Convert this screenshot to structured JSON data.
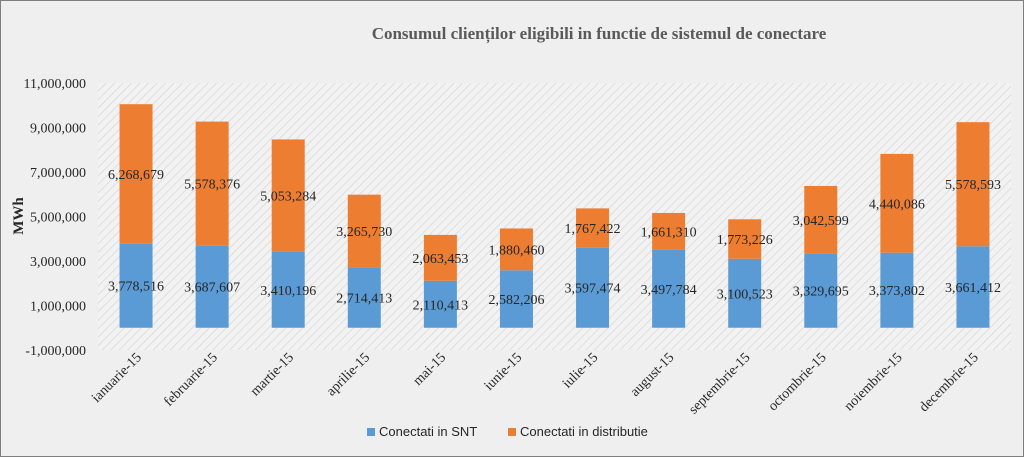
{
  "chart_data": {
    "type": "bar",
    "stacked": true,
    "title": "Consumul clienților eligibili in functie de sistemul de conectare",
    "xlabel": "",
    "ylabel": "MWh",
    "ylim": [
      -1000000,
      11000000
    ],
    "yticks": [
      -1000000,
      1000000,
      3000000,
      5000000,
      7000000,
      9000000,
      11000000
    ],
    "ytick_labels": [
      "-1,000,000",
      "1,000,000",
      "3,000,000",
      "5,000,000",
      "7,000,000",
      "9,000,000",
      "11,000,000"
    ],
    "grid": false,
    "legend_position": "bottom",
    "categories": [
      "ianuarie-15",
      "februarie-15",
      "martie-15",
      "aprilie-15",
      "mai-15",
      "iunie-15",
      "iulie-15",
      "august-15",
      "septembrie-15",
      "octombrie-15",
      "noiembrie-15",
      "decembrie-15"
    ],
    "series": [
      {
        "name": "Conectati in SNT",
        "color": "#5b9bd5",
        "values": [
          3778516,
          3687607,
          3410196,
          2714413,
          2110413,
          2582206,
          3597474,
          3497784,
          3100523,
          3329695,
          3373802,
          3661412
        ],
        "labels": [
          "3,778,516",
          "3,687,607",
          "3,410,196",
          "2,714,413",
          "2,110,413",
          "2,582,206",
          "3,597,474",
          "3,497,784",
          "3,100,523",
          "3,329,695",
          "3,373,802",
          "3,661,412"
        ]
      },
      {
        "name": "Conectati in distributie",
        "color": "#ed7d31",
        "values": [
          6268679,
          5578376,
          5053284,
          3265730,
          2063453,
          1880460,
          1767422,
          1661310,
          1773226,
          3042599,
          4440086,
          5578593
        ],
        "labels": [
          "6,268,679",
          "5,578,376",
          "5,053,284",
          "3,265,730",
          "2,063,453",
          "1,880,460",
          "1,767,422",
          "1,661,310",
          "1,773,226",
          "3,042,599",
          "4,440,086",
          "5,578,593"
        ]
      }
    ]
  }
}
